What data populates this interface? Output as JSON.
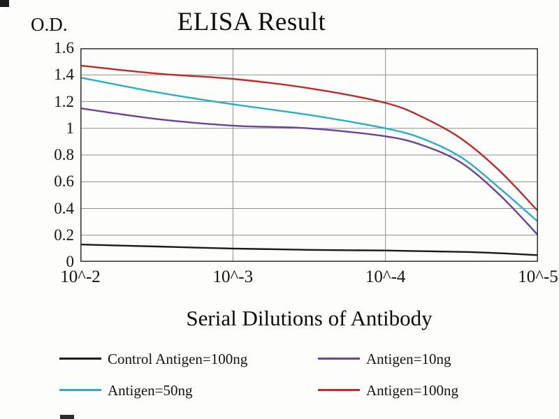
{
  "header": {
    "title": "ELISA Result",
    "od_label": "O.D."
  },
  "chart_data": {
    "type": "line",
    "title": "ELISA Result",
    "xlabel": "Serial Dilutions of Antibody",
    "ylabel": "O.D.",
    "x_tick_labels": [
      "10^-2",
      "10^-3",
      "10^-4",
      "10^-5"
    ],
    "x_scale_note": "serial log dilutions, ticks equally spaced",
    "x": [
      0,
      0.5,
      1,
      1.5,
      2,
      2.25,
      2.5,
      2.75,
      3
    ],
    "ylim": [
      0,
      1.6
    ],
    "ytick_values": [
      0,
      0.2,
      0.4,
      0.6,
      0.8,
      1,
      1.2,
      1.4,
      1.6
    ],
    "ytick_labels": [
      "0",
      "0.2",
      "0.4",
      "0.6",
      "0.8",
      "1",
      "1.2",
      "1.4",
      "1.6"
    ],
    "grid": true,
    "legend_position": "below",
    "colors": {
      "grid": "#8f8f8f",
      "border": "#3b3b3b"
    },
    "series": [
      {
        "name": "Control Antigen=100ng",
        "color": "#1a1a1a",
        "values": [
          0.13,
          0.115,
          0.1,
          0.09,
          0.085,
          0.08,
          0.075,
          0.065,
          0.05
        ]
      },
      {
        "name": "Antigen=10ng",
        "color": "#6e4099",
        "values": [
          1.15,
          1.07,
          1.02,
          1.0,
          0.94,
          0.87,
          0.74,
          0.5,
          0.2
        ]
      },
      {
        "name": "Antigen=50ng",
        "color": "#29b0c8",
        "values": [
          1.38,
          1.27,
          1.18,
          1.1,
          1.0,
          0.92,
          0.78,
          0.55,
          0.3
        ]
      },
      {
        "name": "Antigen=100ng",
        "color": "#c22a28",
        "values": [
          1.47,
          1.41,
          1.37,
          1.3,
          1.19,
          1.08,
          0.92,
          0.68,
          0.38
        ]
      }
    ]
  }
}
